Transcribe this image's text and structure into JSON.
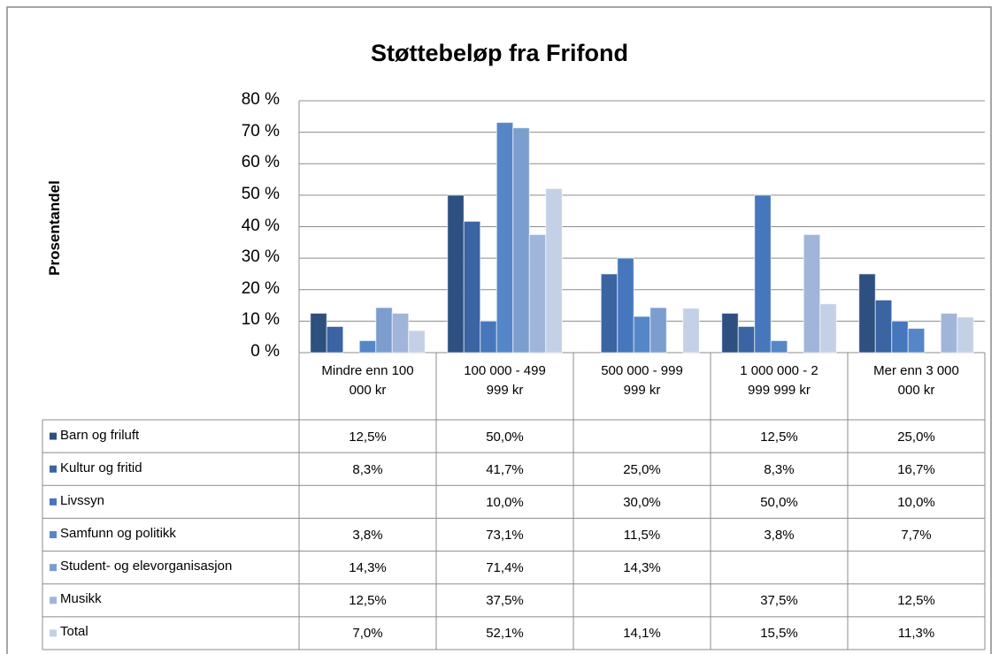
{
  "chart_data": {
    "type": "bar",
    "title": "Støttebeløp fra Frifond",
    "y_label": "Prosentandel",
    "categories": [
      "Mindre enn 100 000 kr",
      "100 000 - 499 999 kr",
      "500 000 - 999 999 kr",
      "1 000 000 - 2 999 999 kr",
      "Mer enn 3 000 000 kr"
    ],
    "series": [
      {
        "name": "Barn og friluft",
        "color": "#2e5080",
        "values": [
          12.5,
          50.0,
          null,
          12.5,
          25.0
        ],
        "value_labels": [
          "12,5%",
          "50,0%",
          null,
          "12,5%",
          "25,0%"
        ]
      },
      {
        "name": "Kultur og fritid",
        "color": "#3a64a2",
        "values": [
          8.3,
          41.7,
          25.0,
          8.3,
          16.7
        ],
        "value_labels": [
          "8,3%",
          "41,7%",
          "25,0%",
          "8,3%",
          "16,7%"
        ]
      },
      {
        "name": "Livssyn",
        "color": "#4677bd",
        "values": [
          null,
          10.0,
          30.0,
          50.0,
          10.0
        ],
        "value_labels": [
          null,
          "10,0%",
          "30,0%",
          "50,0%",
          "10,0%"
        ]
      },
      {
        "name": "Samfunn og politikk",
        "color": "#5587c8",
        "values": [
          3.8,
          73.1,
          11.5,
          3.8,
          7.7
        ],
        "value_labels": [
          "3,8%",
          "73,1%",
          "11,5%",
          "3,8%",
          "7,7%"
        ]
      },
      {
        "name": "Student- og elevorganisasjon",
        "color": "#7b9ecf",
        "values": [
          14.3,
          71.4,
          14.3,
          null,
          null
        ],
        "value_labels": [
          "14,3%",
          "71,4%",
          "14,3%",
          null,
          null
        ]
      },
      {
        "name": "Musikk",
        "color": "#a0b5d9",
        "values": [
          12.5,
          37.5,
          null,
          37.5,
          12.5
        ],
        "value_labels": [
          "12,5%",
          "37,5%",
          null,
          "37,5%",
          "12,5%"
        ]
      },
      {
        "name": "Total",
        "color": "#c4d0e6",
        "values": [
          7.0,
          52.1,
          14.1,
          15.5,
          11.3
        ],
        "value_labels": [
          "7,0%",
          "52,1%",
          "14,1%",
          "15,5%",
          "11,3%"
        ]
      }
    ],
    "ylim": [
      0,
      80
    ],
    "yticks": [
      {
        "value": 0,
        "label": "0 %"
      },
      {
        "value": 10,
        "label": "10 %"
      },
      {
        "value": 20,
        "label": "20 %"
      },
      {
        "value": 30,
        "label": "30 %"
      },
      {
        "value": 40,
        "label": "40 %"
      },
      {
        "value": 50,
        "label": "50 %"
      },
      {
        "value": 60,
        "label": "60 %"
      },
      {
        "value": 70,
        "label": "70 %"
      },
      {
        "value": 80,
        "label": "80 %"
      }
    ],
    "grid": true
  }
}
